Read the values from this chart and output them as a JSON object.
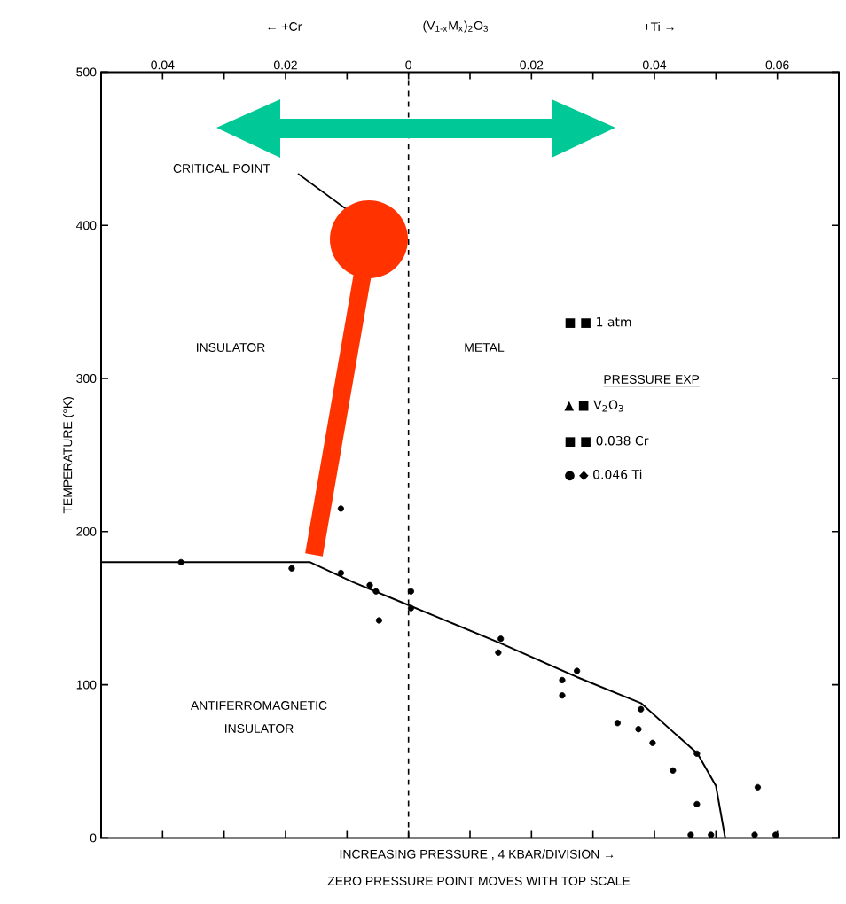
{
  "chart_data": {
    "type": "scatter",
    "xlabel": "INCREASING PRESSURE , 4 KBAR/DIVISION →",
    "ylabel": "TEMPERATURE (°K)",
    "xlim": [
      -0.05,
      0.07
    ],
    "xticks": [
      {
        "value": -0.04,
        "label": "0.04"
      },
      {
        "value": -0.03,
        "label": null
      },
      {
        "value": -0.02,
        "label": "0.02"
      },
      {
        "value": -0.01,
        "label": null
      },
      {
        "value": 0,
        "label": "0"
      },
      {
        "value": 0.01,
        "label": null
      },
      {
        "value": 0.02,
        "label": "0.02"
      },
      {
        "value": 0.03,
        "label": null
      },
      {
        "value": 0.04,
        "label": "0.04"
      },
      {
        "value": 0.05,
        "label": null
      },
      {
        "value": 0.06,
        "label": "0.06"
      }
    ],
    "ylim": [
      0,
      500
    ],
    "yticks": [
      0,
      100,
      200,
      300,
      400,
      500
    ],
    "series": [
      {
        "color": "#000000",
        "marker": "circle",
        "x": [
          -0.037,
          -0.019,
          -0.011,
          -0.011,
          -0.0063,
          -0.0053,
          -0.0048,
          0.0004,
          0.0004,
          0.015,
          0.0146,
          0.025,
          0.0274,
          0.025,
          0.0378,
          0.034,
          0.0374,
          0.0397,
          0.0469,
          0.043,
          0.0469,
          0.0568,
          0.0459,
          0.0492,
          0.0563,
          0.0597
        ],
        "values": [
          180,
          176,
          173,
          215,
          165,
          161,
          142,
          161,
          150,
          130,
          121,
          103,
          109,
          93,
          84,
          75,
          71,
          62,
          55,
          44,
          22,
          33,
          2,
          2,
          2,
          2
        ]
      },
      {
        "type": "line",
        "color": "#000000",
        "marker": "none",
        "line_style": "solid",
        "x": [
          -0.05,
          -0.016,
          -0.009,
          0,
          0.015,
          0.0274,
          0.0378,
          0.047,
          0.05,
          0.0515
        ],
        "values": [
          180,
          180,
          167,
          152,
          127,
          105,
          88,
          55,
          34,
          0
        ]
      }
    ],
    "ref_lines": [
      {
        "axis": "x",
        "value": 0,
        "line_style": "dashed"
      }
    ],
    "annotations": [
      "CRITICAL POINT",
      "INSULATOR",
      "METAL",
      "ANTIFERROMAGNETIC",
      "INSULATOR",
      "■ ■  1 atm",
      "PRESSURE EXP",
      "▲ ■  V$_{2}$O$_{3}$",
      "■ ■  0.038 Cr",
      "● ◆  0.046 Ti",
      "← +Cr",
      "(V$_{1-x}$M$_{x}$)$_{2}$O$_{3}$",
      "+Ti →",
      "ZERO PRESSURE POINT MOVES WITH TOP SCALE"
    ]
  }
}
